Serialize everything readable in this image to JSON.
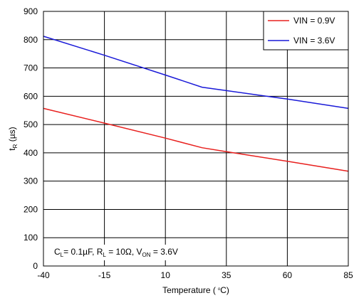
{
  "chart_data": {
    "type": "line",
    "xlabel_prefix": "Temperature (",
    "xlabel_suffix": "C)",
    "ylabel_main": "t",
    "ylabel_sub": "R",
    "ylabel_unit": " (µs)",
    "xlim": [
      -40,
      85
    ],
    "ylim": [
      0,
      900
    ],
    "xticks": [
      -40,
      -15,
      10,
      35,
      60,
      85
    ],
    "yticks": [
      0,
      100,
      200,
      300,
      400,
      500,
      600,
      700,
      800,
      900
    ],
    "grid": true,
    "legend_position": "top-right",
    "series": [
      {
        "name": "VIN = 0.9V",
        "color": "#e8201e",
        "x": [
          -40,
          -15,
          10,
          25,
          35,
          60,
          85
        ],
        "y": [
          557,
          505,
          452,
          418,
          404,
          370,
          335
        ]
      },
      {
        "name": "VIN = 3.6V",
        "color": "#1a1ad8",
        "x": [
          -40,
          -15,
          10,
          25,
          35,
          60,
          85
        ],
        "y": [
          812,
          745,
          675,
          632,
          620,
          590,
          557
        ]
      }
    ],
    "annotation": {
      "c_main": "C",
      "c_sub": "L",
      "c_val": "= 0.1µF, ",
      "r_main": "R",
      "r_sub": "L",
      "r_val": " = 10Ω, ",
      "v_main": "V",
      "v_sub": "ON",
      "v_val": " = 3.6V"
    }
  }
}
